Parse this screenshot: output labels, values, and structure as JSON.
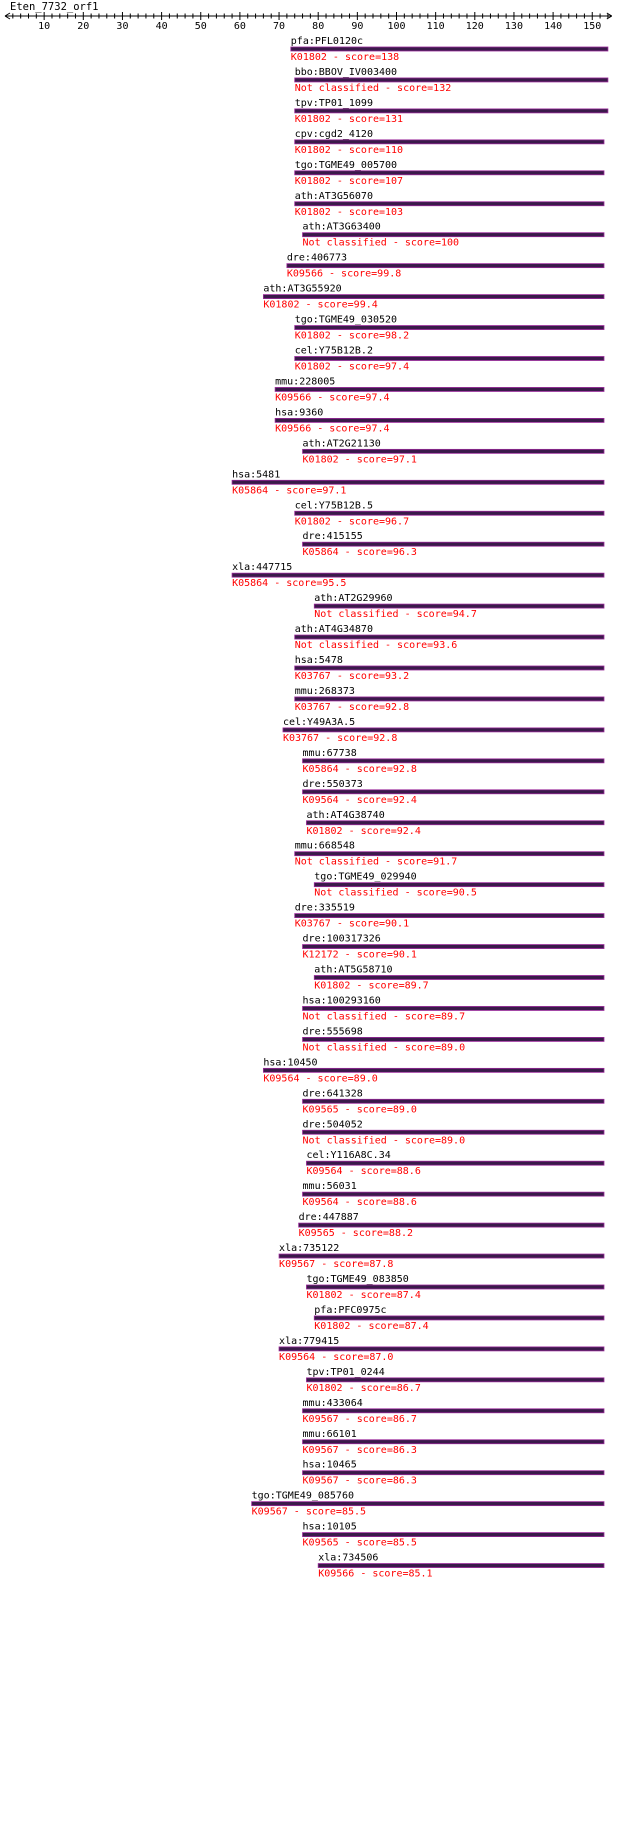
{
  "header": {
    "query_name": "Eten_7732_orf1"
  },
  "axis": {
    "min": 0,
    "max": 155,
    "ticks": [
      10,
      20,
      30,
      40,
      50,
      60,
      70,
      80,
      90,
      100,
      110,
      120,
      130,
      140,
      150
    ]
  },
  "colors": {
    "label": "#000000",
    "classification": "#ff0000",
    "bar": "#3a1a4a",
    "bar_edge": "#9a2a9a"
  },
  "hits": [
    {
      "gene": "pfa:PFL0120c",
      "ko": "K01802 - score=138",
      "start": 73,
      "end": 154
    },
    {
      "gene": "bbo:BBOV_IV003400",
      "ko": "Not classified - score=132",
      "start": 74,
      "end": 154
    },
    {
      "gene": "tpv:TP01_1099",
      "ko": "K01802 - score=131",
      "start": 74,
      "end": 154
    },
    {
      "gene": "cpv:cgd2_4120",
      "ko": "K01802 - score=110",
      "start": 74,
      "end": 153
    },
    {
      "gene": "tgo:TGME49_005700",
      "ko": "K01802 - score=107",
      "start": 74,
      "end": 153
    },
    {
      "gene": "ath:AT3G56070",
      "ko": "K01802 - score=103",
      "start": 74,
      "end": 153
    },
    {
      "gene": "ath:AT3G63400",
      "ko": "Not classified - score=100",
      "start": 76,
      "end": 153
    },
    {
      "gene": "dre:406773",
      "ko": "K09566 - score=99.8",
      "start": 72,
      "end": 153
    },
    {
      "gene": "ath:AT3G55920",
      "ko": "K01802 - score=99.4",
      "start": 66,
      "end": 153
    },
    {
      "gene": "tgo:TGME49_030520",
      "ko": "K01802 - score=98.2",
      "start": 74,
      "end": 153
    },
    {
      "gene": "cel:Y75B12B.2",
      "ko": "K01802 - score=97.4",
      "start": 74,
      "end": 153
    },
    {
      "gene": "mmu:228005",
      "ko": "K09566 - score=97.4",
      "start": 69,
      "end": 153
    },
    {
      "gene": "hsa:9360",
      "ko": "K09566 - score=97.4",
      "start": 69,
      "end": 153
    },
    {
      "gene": "ath:AT2G21130",
      "ko": "K01802 - score=97.1",
      "start": 76,
      "end": 153
    },
    {
      "gene": "hsa:5481",
      "ko": "K05864 - score=97.1",
      "start": 58,
      "end": 153
    },
    {
      "gene": "cel:Y75B12B.5",
      "ko": "K01802 - score=96.7",
      "start": 74,
      "end": 153
    },
    {
      "gene": "dre:415155",
      "ko": "K05864 - score=96.3",
      "start": 76,
      "end": 153
    },
    {
      "gene": "xla:447715",
      "ko": "K05864 - score=95.5",
      "start": 58,
      "end": 153
    },
    {
      "gene": "ath:AT2G29960",
      "ko": "Not classified - score=94.7",
      "start": 79,
      "end": 153
    },
    {
      "gene": "ath:AT4G34870",
      "ko": "Not classified - score=93.6",
      "start": 74,
      "end": 153
    },
    {
      "gene": "hsa:5478",
      "ko": "K03767 - score=93.2",
      "start": 74,
      "end": 153
    },
    {
      "gene": "mmu:268373",
      "ko": "K03767 - score=92.8",
      "start": 74,
      "end": 153
    },
    {
      "gene": "cel:Y49A3A.5",
      "ko": "K03767 - score=92.8",
      "start": 71,
      "end": 153
    },
    {
      "gene": "mmu:67738",
      "ko": "K05864 - score=92.8",
      "start": 76,
      "end": 153
    },
    {
      "gene": "dre:550373",
      "ko": "K09564 - score=92.4",
      "start": 76,
      "end": 153
    },
    {
      "gene": "ath:AT4G38740",
      "ko": "K01802 - score=92.4",
      "start": 77,
      "end": 153
    },
    {
      "gene": "mmu:668548",
      "ko": "Not classified - score=91.7",
      "start": 74,
      "end": 153
    },
    {
      "gene": "tgo:TGME49_029940",
      "ko": "Not classified - score=90.5",
      "start": 79,
      "end": 153
    },
    {
      "gene": "dre:335519",
      "ko": "K03767 - score=90.1",
      "start": 74,
      "end": 153
    },
    {
      "gene": "dre:100317326",
      "ko": "K12172 - score=90.1",
      "start": 76,
      "end": 153
    },
    {
      "gene": "ath:AT5G58710",
      "ko": "K01802 - score=89.7",
      "start": 79,
      "end": 153
    },
    {
      "gene": "hsa:100293160",
      "ko": "Not classified - score=89.7",
      "start": 76,
      "end": 153
    },
    {
      "gene": "dre:555698",
      "ko": "Not classified - score=89.0",
      "start": 76,
      "end": 153
    },
    {
      "gene": "hsa:10450",
      "ko": "K09564 - score=89.0",
      "start": 66,
      "end": 153
    },
    {
      "gene": "dre:641328",
      "ko": "K09565 - score=89.0",
      "start": 76,
      "end": 153
    },
    {
      "gene": "dre:504052",
      "ko": "Not classified - score=89.0",
      "start": 76,
      "end": 153
    },
    {
      "gene": "cel:Y116A8C.34",
      "ko": "K09564 - score=88.6",
      "start": 77,
      "end": 153
    },
    {
      "gene": "mmu:56031",
      "ko": "K09564 - score=88.6",
      "start": 76,
      "end": 153
    },
    {
      "gene": "dre:447887",
      "ko": "K09565 - score=88.2",
      "start": 75,
      "end": 153
    },
    {
      "gene": "xla:735122",
      "ko": "K09567 - score=87.8",
      "start": 70,
      "end": 153
    },
    {
      "gene": "tgo:TGME49_083850",
      "ko": "K01802 - score=87.4",
      "start": 77,
      "end": 153
    },
    {
      "gene": "pfa:PFC0975c",
      "ko": "K01802 - score=87.4",
      "start": 79,
      "end": 153
    },
    {
      "gene": "xla:779415",
      "ko": "K09564 - score=87.0",
      "start": 70,
      "end": 153
    },
    {
      "gene": "tpv:TP01_0244",
      "ko": "K01802 - score=86.7",
      "start": 77,
      "end": 153
    },
    {
      "gene": "mmu:433064",
      "ko": "K09567 - score=86.7",
      "start": 76,
      "end": 153
    },
    {
      "gene": "mmu:66101",
      "ko": "K09567 - score=86.3",
      "start": 76,
      "end": 153
    },
    {
      "gene": "hsa:10465",
      "ko": "K09567 - score=86.3",
      "start": 76,
      "end": 153
    },
    {
      "gene": "tgo:TGME49_085760",
      "ko": "K09567 - score=85.5",
      "start": 63,
      "end": 153
    },
    {
      "gene": "hsa:10105",
      "ko": "K09565 - score=85.5",
      "start": 76,
      "end": 153
    },
    {
      "gene": "xla:734506",
      "ko": "K09566 - score=85.1",
      "start": 80,
      "end": 153
    }
  ]
}
